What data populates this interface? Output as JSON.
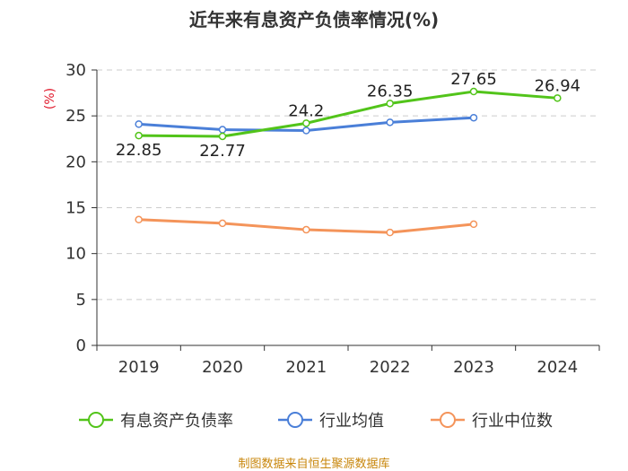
{
  "chart_data": {
    "type": "line",
    "title": "近年来有息资产负债率情况(%)",
    "ylabel": "(%)",
    "xlabel": "",
    "categories": [
      "2019",
      "2020",
      "2021",
      "2022",
      "2023",
      "2024"
    ],
    "ylim": [
      0,
      30
    ],
    "yticks": [
      0,
      5,
      10,
      15,
      20,
      25,
      30
    ],
    "grid": true,
    "legend_position": "bottom",
    "series": [
      {
        "name": "有息资产负债率",
        "color": "#52c41a",
        "values": [
          22.85,
          22.77,
          24.2,
          26.35,
          27.65,
          26.94
        ],
        "labels": [
          "22.85",
          "22.77",
          "24.2",
          "26.35",
          "27.65",
          "26.94"
        ]
      },
      {
        "name": "行业均值",
        "color": "#4a7fd8",
        "values": [
          24.1,
          23.5,
          23.4,
          24.3,
          24.8,
          null
        ]
      },
      {
        "name": "行业中位数",
        "color": "#f4945a",
        "values": [
          13.7,
          13.3,
          12.6,
          12.3,
          13.2,
          null
        ]
      }
    ]
  },
  "source": "制图数据来自恒生聚源数据库"
}
